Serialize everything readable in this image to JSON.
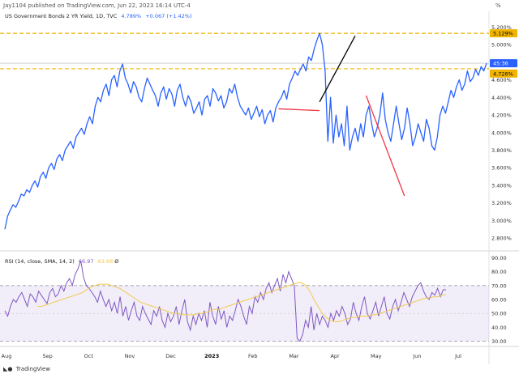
{
  "header": {
    "publisher": "Jay1104 published on TradingView.com, Jun 22, 2023 16:14 UTC-4",
    "percent_mark": "%"
  },
  "legend": {
    "symbol": "US Government Bonds 2 YR Yield, 1D, TVC",
    "last": "4.789%",
    "change": "+0.067 (+1.42%)"
  },
  "rsi_legend": {
    "label": "RSI (14, close, SMA, 14, 2)",
    "rsi_value": "66.97",
    "sma_value": "63.68",
    "extra": "Ø"
  },
  "badges": {
    "top": "5.129%",
    "time": "45:36",
    "level": "4.726%"
  },
  "footer": {
    "brand": "TradingView"
  },
  "colors": {
    "price": "#2962ff",
    "rsi": "#7e57c2",
    "rsi_sma": "#f2c94c",
    "level_line": "#f0b400",
    "trend_black": "#000000",
    "trend_red": "#f23645"
  },
  "chart_data": [
    {
      "type": "line",
      "series": [
        {
          "values": [
            2.9,
            3.05,
            3.12,
            3.18,
            3.15,
            3.22,
            3.3,
            3.28,
            3.35,
            3.32,
            3.4,
            3.45,
            3.38,
            3.5,
            3.55,
            3.48,
            3.6,
            3.65,
            3.58,
            3.7,
            3.75,
            3.68,
            3.8,
            3.85,
            3.9,
            3.82,
            3.95,
            4.0,
            4.05,
            3.98,
            4.1,
            4.18,
            4.1,
            4.3,
            4.4,
            4.35,
            4.48,
            4.55,
            4.42,
            4.6,
            4.65,
            4.52,
            4.7,
            4.78,
            4.62,
            4.55,
            4.45,
            4.58,
            4.52,
            4.4,
            4.35,
            4.5,
            4.62,
            4.55,
            4.48,
            4.42,
            4.3,
            4.45,
            4.52,
            4.38,
            4.5,
            4.44,
            4.3,
            4.48,
            4.55,
            4.4,
            4.3,
            4.42,
            4.35,
            4.22,
            4.28,
            4.35,
            4.2,
            4.38,
            4.42,
            4.3,
            4.5,
            4.45,
            4.36,
            4.42,
            4.28,
            4.35,
            4.5,
            4.45,
            4.55,
            4.4,
            4.3,
            4.25,
            4.2,
            4.28,
            4.15,
            4.22,
            4.3,
            4.18,
            4.26,
            4.1,
            4.2,
            4.25,
            4.12,
            4.28,
            4.35,
            4.4,
            4.48,
            4.38,
            4.55,
            4.62,
            4.7,
            4.65,
            4.72,
            4.78,
            4.7,
            4.86,
            4.82,
            4.95,
            5.05,
            5.129,
            5.0,
            4.7,
            3.9,
            4.4,
            3.88,
            4.2,
            3.95,
            4.1,
            3.85,
            4.3,
            3.8,
            3.95,
            4.05,
            3.9,
            4.1,
            3.95,
            4.2,
            4.3,
            4.1,
            3.95,
            4.05,
            4.2,
            4.45,
            4.15,
            4.0,
            3.9,
            4.1,
            4.3,
            4.1,
            3.92,
            4.05,
            4.28,
            4.1,
            3.85,
            3.95,
            4.1,
            4.0,
            3.9,
            4.15,
            4.05,
            3.85,
            3.8,
            3.95,
            4.2,
            4.3,
            4.22,
            4.35,
            4.48,
            4.4,
            4.52,
            4.6,
            4.48,
            4.55,
            4.7,
            4.58,
            4.62,
            4.72,
            4.65,
            4.75,
            4.7,
            4.789
          ]
        }
      ],
      "xlabels": [
        "Aug",
        "Sep",
        "Oct",
        "Nov",
        "Dec",
        "2023",
        "Feb",
        "Mar",
        "Apr",
        "May",
        "Jun",
        "Jul"
      ],
      "yticks": [
        "2.800%",
        "3.000%",
        "3.200%",
        "3.400%",
        "3.600%",
        "3.800%",
        "4.000%",
        "4.200%",
        "4.400%",
        "4.600%",
        "4.800%",
        "5.000%",
        "5.200%"
      ],
      "ylim": [
        2.7,
        5.25
      ],
      "levels": [
        5.129,
        4.726
      ],
      "trendlines": [
        {
          "color": "black",
          "from": [
            115,
            4.35
          ],
          "to": [
            128,
            5.1
          ]
        },
        {
          "color": "red",
          "from": [
            100,
            4.27
          ],
          "to": [
            115,
            4.25
          ]
        },
        {
          "color": "red",
          "from": [
            132,
            4.42
          ],
          "to": [
            146,
            3.28
          ]
        }
      ]
    },
    {
      "type": "line",
      "series": [
        {
          "values": [
            52,
            48,
            55,
            60,
            58,
            62,
            65,
            60,
            55,
            64,
            62,
            58,
            66,
            63,
            60,
            57,
            65,
            68,
            62,
            64,
            70,
            66,
            72,
            75,
            70,
            78,
            82,
            88,
            76,
            70,
            68,
            65,
            62,
            58,
            66,
            60,
            55,
            60,
            52,
            58,
            50,
            62,
            48,
            55,
            45,
            52,
            58,
            48,
            45,
            55,
            50,
            46,
            42,
            52,
            48,
            55,
            45,
            40,
            50,
            44,
            48,
            55,
            42,
            52,
            60,
            44,
            38,
            48,
            42,
            50,
            45,
            52,
            40,
            58,
            48,
            42,
            55,
            46,
            52,
            40,
            48,
            45,
            52,
            60,
            55,
            48,
            42,
            55,
            50,
            62,
            58,
            65,
            60,
            68,
            72,
            65,
            70,
            75,
            66,
            78,
            72,
            80,
            75,
            70,
            32,
            30,
            35,
            45,
            40,
            55,
            38,
            50,
            42,
            48,
            45,
            40,
            50,
            45,
            52,
            48,
            55,
            50,
            42,
            46,
            58,
            50,
            45,
            55,
            62,
            50,
            46,
            52,
            58,
            48,
            55,
            62,
            50,
            46,
            55,
            60,
            52,
            58,
            65,
            60,
            55,
            62,
            66,
            70,
            72,
            66,
            62,
            60,
            65,
            63,
            68,
            62,
            67,
            66.97
          ]
        },
        {
          "values": [
            55,
            55,
            56,
            57,
            58,
            59,
            60,
            61,
            62,
            63,
            64,
            65,
            67,
            69,
            70,
            71,
            71,
            71,
            70,
            69,
            68,
            66,
            64,
            62,
            60,
            58,
            57,
            56,
            55,
            54,
            53,
            52,
            51,
            50,
            50,
            49,
            49,
            49,
            49,
            50,
            50,
            51,
            52,
            53,
            53,
            54,
            55,
            56,
            57,
            58,
            59,
            60,
            61,
            62,
            63,
            64,
            65,
            66,
            67,
            68,
            69,
            70,
            71,
            72,
            72,
            70,
            66,
            60,
            55,
            50,
            47,
            45,
            44,
            44,
            45,
            46,
            47,
            47,
            48,
            48,
            48,
            49,
            49,
            50,
            51,
            52,
            53,
            54,
            55,
            56,
            57,
            58,
            59,
            60,
            61,
            61,
            62,
            62,
            63,
            63.68
          ]
        }
      ],
      "yticks": [
        "30.00",
        "40.00",
        "50.00",
        "60.00",
        "70.00",
        "80.00",
        "90.00"
      ],
      "ylim": [
        28,
        92
      ],
      "bands": [
        30,
        70
      ]
    }
  ]
}
